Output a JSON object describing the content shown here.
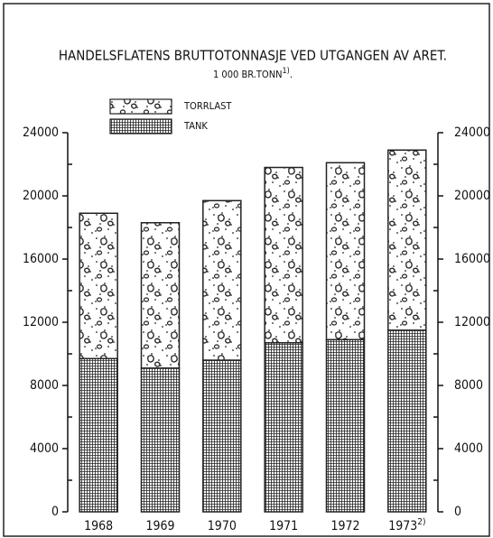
{
  "chart_data": {
    "type": "stacked_bar",
    "title": "HANDELSFLATENS BRUTTOTONNASJE VED UTGANGEN AV ARET.",
    "subtitle": {
      "text": "1 000 BR.TONN",
      "note": "1)",
      "end": "."
    },
    "categories": [
      "1968",
      "1969",
      "1970",
      "1971",
      "1972",
      "1973"
    ],
    "category_notes": {
      "5": "2)"
    },
    "series": [
      {
        "name": "TANK",
        "color": "#222222",
        "values": [
          9700,
          9100,
          9600,
          10700,
          10900,
          11500
        ]
      },
      {
        "name": "TORRLAST",
        "color": "#ffffff",
        "values": [
          9200,
          9200,
          10100,
          11100,
          11200,
          11400
        ]
      }
    ],
    "ylim": [
      0,
      24000
    ],
    "yticks": [
      0,
      4000,
      8000,
      12000,
      16000,
      20000,
      24000
    ],
    "minor_yticks": [
      2000,
      6000,
      10000,
      14000,
      18000,
      22000
    ],
    "y2lim": [
      0,
      24000
    ],
    "y2ticks": [
      0,
      4000,
      8000,
      12000,
      16000,
      20000,
      24000
    ]
  }
}
